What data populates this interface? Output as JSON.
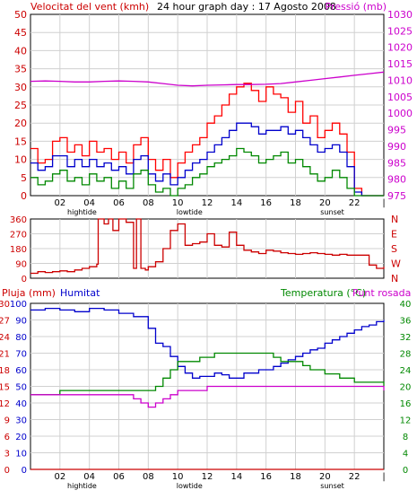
{
  "colors": {
    "background": "#ffffff",
    "frame": "#000000",
    "grid": "#d0d0d0",
    "wind_axis": "#cc0000",
    "pressure_axis": "#cc00cc",
    "rain_axis": "#cc0000",
    "humidity_axis": "#0000cc",
    "temp_axis": "#008800",
    "wind_max": "#ff0000",
    "wind_avg": "#0000cc",
    "wind_min": "#008800",
    "pressure": "#cc00cc",
    "direction": "#cc0000",
    "humidity": "#0000cc",
    "temperature": "#008800",
    "dewpoint": "#cc00cc",
    "rain": "#cc0000"
  },
  "chart_data": [
    {
      "type": "line",
      "title": "24 hour graph day : 17 Agosto 2008",
      "ylabel": "Velocitat del vent (kmh)",
      "y2label": "Pressió (mb)",
      "ylim": [
        0,
        50
      ],
      "y2lim": [
        975,
        1030
      ],
      "yticks": [
        "0",
        "5",
        "10",
        "15",
        "20",
        "25",
        "30",
        "35",
        "40",
        "45",
        "50"
      ],
      "y2ticks": [
        "975",
        "980",
        "985",
        "990",
        "995",
        "1000",
        "1005",
        "1010",
        "1015",
        "1020",
        "1025",
        "1030"
      ],
      "xlim": [
        0,
        24
      ],
      "grid": true,
      "series": [
        {
          "key": "wind_max",
          "x": [
            0,
            0.5,
            1,
            1.5,
            2,
            2.5,
            3,
            3.5,
            4,
            4.5,
            5,
            5.5,
            6,
            6.5,
            7,
            7.5,
            8,
            8.5,
            9,
            9.5,
            10,
            10.5,
            11,
            11.5,
            12,
            12.5,
            13,
            13.5,
            14,
            14.5,
            15,
            15.5,
            16,
            16.5,
            17,
            17.5,
            18,
            18.5,
            19,
            19.5,
            20,
            20.5,
            21,
            21.5,
            22,
            22.5,
            23,
            23.5,
            24
          ],
          "values": [
            13,
            9,
            10,
            15,
            16,
            12,
            14,
            11,
            15,
            12,
            13,
            10,
            12,
            9,
            14,
            16,
            10,
            7,
            10,
            5,
            9,
            12,
            14,
            16,
            20,
            22,
            25,
            28,
            30,
            31,
            29,
            26,
            30,
            28,
            27,
            23,
            26,
            20,
            22,
            16,
            18,
            20,
            17,
            12,
            2,
            0,
            0,
            0,
            0
          ]
        },
        {
          "key": "wind_avg",
          "x": [
            0,
            0.5,
            1,
            1.5,
            2,
            2.5,
            3,
            3.5,
            4,
            4.5,
            5,
            5.5,
            6,
            6.5,
            7,
            7.5,
            8,
            8.5,
            9,
            9.5,
            10,
            10.5,
            11,
            11.5,
            12,
            12.5,
            13,
            13.5,
            14,
            14.5,
            15,
            15.5,
            16,
            16.5,
            17,
            17.5,
            18,
            18.5,
            19,
            19.5,
            20,
            20.5,
            21,
            21.5,
            22,
            22.5,
            23,
            23.5,
            24
          ],
          "values": [
            9,
            7,
            8,
            11,
            11,
            8,
            10,
            8,
            10,
            8,
            9,
            7,
            8,
            6,
            10,
            11,
            6,
            4,
            6,
            3,
            5,
            7,
            9,
            10,
            12,
            14,
            16,
            18,
            20,
            20,
            19,
            17,
            18,
            18,
            19,
            17,
            18,
            16,
            14,
            12,
            13,
            14,
            12,
            8,
            1,
            0,
            0,
            0,
            0
          ]
        },
        {
          "key": "wind_min",
          "x": [
            0,
            0.5,
            1,
            1.5,
            2,
            2.5,
            3,
            3.5,
            4,
            4.5,
            5,
            5.5,
            6,
            6.5,
            7,
            7.5,
            8,
            8.5,
            9,
            9.5,
            10,
            10.5,
            11,
            11.5,
            12,
            12.5,
            13,
            13.5,
            14,
            14.5,
            15,
            15.5,
            16,
            16.5,
            17,
            17.5,
            18,
            18.5,
            19,
            19.5,
            20,
            20.5,
            21,
            21.5,
            22,
            22.5,
            23,
            23.5,
            24
          ],
          "values": [
            5,
            3,
            4,
            6,
            7,
            4,
            5,
            3,
            6,
            4,
            5,
            2,
            4,
            2,
            6,
            7,
            3,
            1,
            2,
            0,
            2,
            3,
            5,
            6,
            8,
            9,
            10,
            11,
            13,
            12,
            11,
            9,
            10,
            11,
            12,
            9,
            10,
            8,
            6,
            4,
            5,
            7,
            5,
            2,
            0,
            0,
            0,
            0,
            0
          ]
        },
        {
          "key": "pressure",
          "axis": "right",
          "x": [
            0,
            1,
            2,
            3,
            4,
            5,
            6,
            7,
            8,
            9,
            10,
            11,
            12,
            13,
            14,
            15,
            16,
            17,
            18,
            19,
            20,
            21,
            22,
            23,
            24
          ],
          "values": [
            1009.7,
            1009.8,
            1009.7,
            1009.5,
            1009.5,
            1009.7,
            1009.8,
            1009.7,
            1009.5,
            1009,
            1008.5,
            1008.3,
            1008.5,
            1008.6,
            1008.7,
            1008.7,
            1008.8,
            1009,
            1009.5,
            1010,
            1010.5,
            1011,
            1011.5,
            1012,
            1012.5
          ]
        }
      ]
    },
    {
      "type": "line",
      "ylim": [
        0,
        360
      ],
      "yticks": [
        "0",
        "90",
        "180",
        "270",
        "360"
      ],
      "right_labels": [
        "N",
        "W",
        "S",
        "E",
        "N"
      ],
      "xlim": [
        0,
        24
      ],
      "grid": true,
      "series": [
        {
          "key": "direction",
          "x": [
            0,
            0.5,
            1,
            1.5,
            2,
            2.5,
            3,
            3.5,
            4,
            4.5,
            4.6,
            5,
            5.3,
            5.6,
            6,
            6.5,
            7,
            7.2,
            7.5,
            7.8,
            8,
            8.5,
            9,
            9.5,
            10,
            10.5,
            11,
            11.5,
            12,
            12.5,
            13,
            13.5,
            14,
            14.5,
            15,
            15.5,
            16,
            16.5,
            17,
            17.5,
            18,
            18.5,
            19,
            19.5,
            20,
            20.5,
            21,
            21.5,
            22,
            22.5,
            23,
            23.5,
            24
          ],
          "values": [
            30,
            40,
            35,
            40,
            45,
            40,
            50,
            60,
            70,
            85,
            360,
            330,
            360,
            290,
            360,
            340,
            60,
            360,
            60,
            50,
            70,
            100,
            180,
            290,
            330,
            200,
            210,
            220,
            270,
            200,
            190,
            280,
            200,
            170,
            160,
            150,
            170,
            165,
            155,
            150,
            145,
            150,
            155,
            150,
            145,
            140,
            145,
            140,
            140,
            140,
            80,
            60,
            70
          ]
        }
      ]
    },
    {
      "type": "line",
      "ylabel": "Pluja (mm)",
      "title": "Humitat",
      "y2label": "Temperatura (°C)",
      "y3label": "Punt rosada",
      "rain_ylim": [
        0,
        30
      ],
      "hum_ylim": [
        0,
        100
      ],
      "temp_ylim": [
        0,
        40
      ],
      "rain_ticks": [
        "0",
        "3",
        "6",
        "9",
        "12",
        "15",
        "18",
        "21",
        "24",
        "27",
        "30"
      ],
      "hum_ticks": [
        "0",
        "10",
        "20",
        "30",
        "40",
        "50",
        "60",
        "70",
        "80",
        "90",
        "100"
      ],
      "temp_ticks": [
        "0",
        "4",
        "8",
        "12",
        "16",
        "20",
        "24",
        "28",
        "32",
        "36",
        "40"
      ],
      "xlim": [
        0,
        24
      ],
      "grid": true,
      "series": [
        {
          "key": "humidity",
          "x": [
            0,
            1,
            2,
            3,
            4,
            5,
            6,
            7,
            8,
            8.5,
            9,
            9.5,
            10,
            10.5,
            11,
            11.5,
            12,
            12.5,
            13,
            13.5,
            14,
            14.5,
            15,
            15.5,
            16,
            16.5,
            17,
            17.5,
            18,
            18.5,
            19,
            19.5,
            20,
            20.5,
            21,
            21.5,
            22,
            22.5,
            23,
            23.5,
            24
          ],
          "values": [
            96,
            97,
            96,
            95,
            97,
            96,
            94,
            92,
            85,
            76,
            74,
            68,
            62,
            58,
            55,
            56,
            56,
            58,
            57,
            55,
            55,
            58,
            58,
            60,
            60,
            62,
            64,
            66,
            68,
            70,
            72,
            73,
            76,
            78,
            80,
            82,
            84,
            86,
            87,
            89,
            90
          ]
        },
        {
          "key": "temperature",
          "x": [
            0,
            1,
            2,
            3,
            4,
            5,
            6,
            7,
            8,
            8.5,
            9,
            9.5,
            10,
            10.5,
            11,
            11.5,
            12,
            12.5,
            13,
            13.5,
            14,
            14.5,
            15,
            15.5,
            16,
            16.5,
            17,
            17.5,
            18,
            18.5,
            19,
            19.5,
            20,
            20.5,
            21,
            21.5,
            22,
            22.5,
            23,
            23.5,
            24
          ],
          "values": [
            18,
            18,
            19,
            19,
            19,
            19,
            19,
            19,
            19,
            20,
            22,
            24,
            26,
            26,
            26,
            27,
            27,
            28,
            28,
            28,
            28,
            28,
            28,
            28,
            28,
            27,
            26,
            26,
            26,
            25,
            24,
            24,
            23,
            23,
            22,
            22,
            21,
            21,
            21,
            21,
            20
          ]
        },
        {
          "key": "dewpoint",
          "x": [
            0,
            1,
            2,
            3,
            4,
            5,
            6,
            7,
            7.5,
            8,
            8.5,
            9,
            9.5,
            10,
            10.5,
            11,
            11.5,
            12,
            12.5,
            13,
            13.5,
            14,
            14.5,
            15,
            15.5,
            16,
            16.5,
            17,
            17.5,
            18,
            18.5,
            19,
            19.5,
            20,
            20.5,
            21,
            21.5,
            22,
            22.5,
            23,
            23.5,
            24
          ],
          "values": [
            18,
            18,
            18,
            18,
            18,
            18,
            18,
            17,
            16,
            15,
            16,
            17,
            18,
            19,
            19,
            19,
            19,
            20,
            20,
            20,
            20,
            20,
            20,
            20,
            20,
            20,
            20,
            20,
            20,
            20,
            20,
            20,
            20,
            20,
            20,
            20,
            20,
            20,
            20,
            20,
            20,
            19
          ]
        },
        {
          "key": "rain",
          "axis": "rain",
          "x": [
            0,
            24
          ],
          "values": [
            0,
            0
          ]
        }
      ]
    }
  ],
  "x_axis": {
    "ticks": [
      "02",
      "04",
      "06",
      "08",
      "10",
      "12",
      "14",
      "16",
      "18",
      "20",
      "22"
    ],
    "events": [
      "hightide",
      "lowtide",
      "sunset"
    ]
  }
}
